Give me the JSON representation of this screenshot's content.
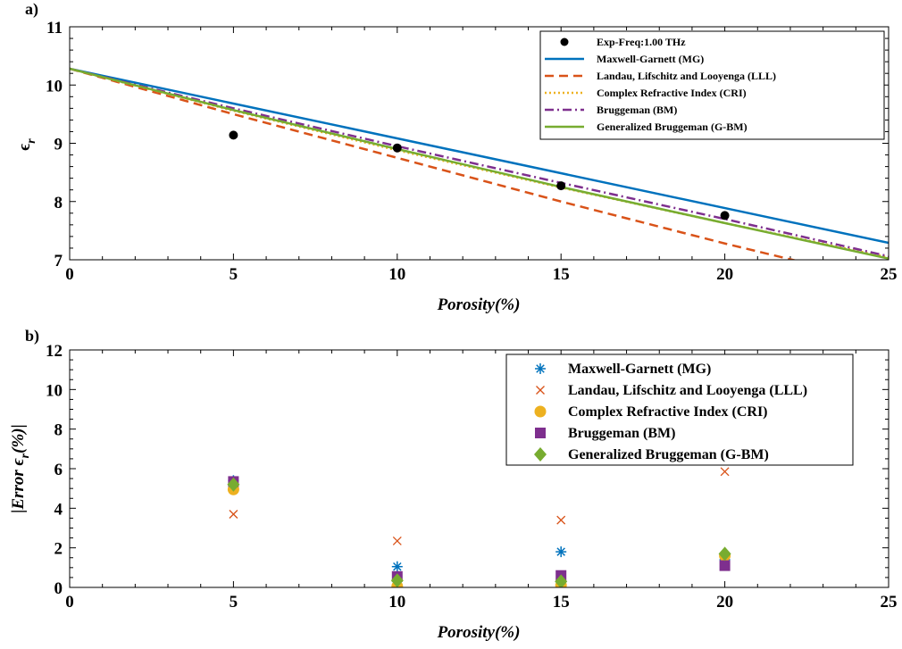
{
  "chart_data": [
    {
      "panel_label": "a)",
      "type": "line",
      "xlabel": "Porosity(%)",
      "ylabel_base": "ϵ",
      "ylabel_sub": "r",
      "xlim": [
        0,
        25
      ],
      "ylim": [
        7,
        11
      ],
      "xticks": [
        0,
        5,
        10,
        15,
        20,
        25
      ],
      "yticks": [
        7,
        8,
        9,
        10,
        11
      ],
      "grid": false,
      "legend_position": "top-right",
      "experimental": {
        "name": "Exp-Freq:1.00 THz",
        "color": "#000000",
        "x": [
          5,
          10,
          15,
          20
        ],
        "y": [
          9.14,
          8.92,
          8.27,
          7.76
        ]
      },
      "series": [
        {
          "name": "Maxwell-Garnett (MG)",
          "color": "#0072BD",
          "dash": "solid",
          "x": [
            0,
            25
          ],
          "y": [
            10.28,
            7.29
          ]
        },
        {
          "name": "Landau, Lifschitz and Looyenga (LLL)",
          "color": "#D95319",
          "dash": "dashed",
          "x": [
            0,
            5,
            10,
            15,
            20,
            25
          ],
          "y": [
            10.28,
            9.5,
            8.75,
            8.0,
            7.28,
            6.6
          ]
        },
        {
          "name": "Complex Refractive Index (CRI)",
          "color": "#EDB120",
          "dash": "dotted",
          "x": [
            0,
            5,
            10,
            15,
            20,
            25
          ],
          "y": [
            10.28,
            9.56,
            8.88,
            8.24,
            7.63,
            7.04
          ]
        },
        {
          "name": "Bruggeman (BM)",
          "color": "#7E2F8E",
          "dash": "dashdot",
          "x": [
            0,
            5,
            10,
            15,
            20,
            25
          ],
          "y": [
            10.28,
            9.6,
            8.95,
            8.32,
            7.7,
            7.06
          ]
        },
        {
          "name": "Generalized Bruggeman (G-BM)",
          "color": "#77AC30",
          "dash": "solid",
          "x": [
            0,
            5,
            10,
            15,
            20,
            25
          ],
          "y": [
            10.28,
            9.57,
            8.9,
            8.25,
            7.63,
            7.02
          ]
        }
      ]
    },
    {
      "panel_label": "b)",
      "type": "scatter",
      "xlabel": "Porosity(%)",
      "ylabel_base": "|Error ϵ",
      "ylabel_sub": "r",
      "ylabel_end": "(%)|",
      "xlim": [
        0,
        25
      ],
      "ylim": [
        0,
        12
      ],
      "xticks": [
        0,
        5,
        10,
        15,
        20,
        25
      ],
      "yticks": [
        0,
        2,
        4,
        6,
        8,
        10,
        12
      ],
      "grid": false,
      "legend_position": "top-right",
      "series": [
        {
          "name": "Maxwell-Garnett (MG)",
          "color": "#0072BD",
          "marker": "asterisk",
          "x": [
            5,
            10,
            15,
            20
          ],
          "y": [
            5.4,
            1.05,
            1.8,
            1.4
          ]
        },
        {
          "name": "Landau, Lifschitz and Looyenga (LLL)",
          "color": "#D95319",
          "marker": "x",
          "x": [
            5,
            10,
            15,
            20
          ],
          "y": [
            3.7,
            2.35,
            3.4,
            5.85
          ]
        },
        {
          "name": "Complex Refractive Index (CRI)",
          "color": "#EDB120",
          "marker": "circle",
          "x": [
            5,
            10,
            15,
            20
          ],
          "y": [
            4.95,
            0.05,
            0.1,
            1.6
          ]
        },
        {
          "name": "Bruggeman (BM)",
          "color": "#7E2F8E",
          "marker": "square",
          "x": [
            5,
            10,
            15,
            20
          ],
          "y": [
            5.35,
            0.55,
            0.6,
            1.1
          ]
        },
        {
          "name": "Generalized Bruggeman (G-BM)",
          "color": "#77AC30",
          "marker": "diamond",
          "x": [
            5,
            10,
            15,
            20
          ],
          "y": [
            5.2,
            0.35,
            0.3,
            1.7
          ]
        }
      ]
    }
  ]
}
